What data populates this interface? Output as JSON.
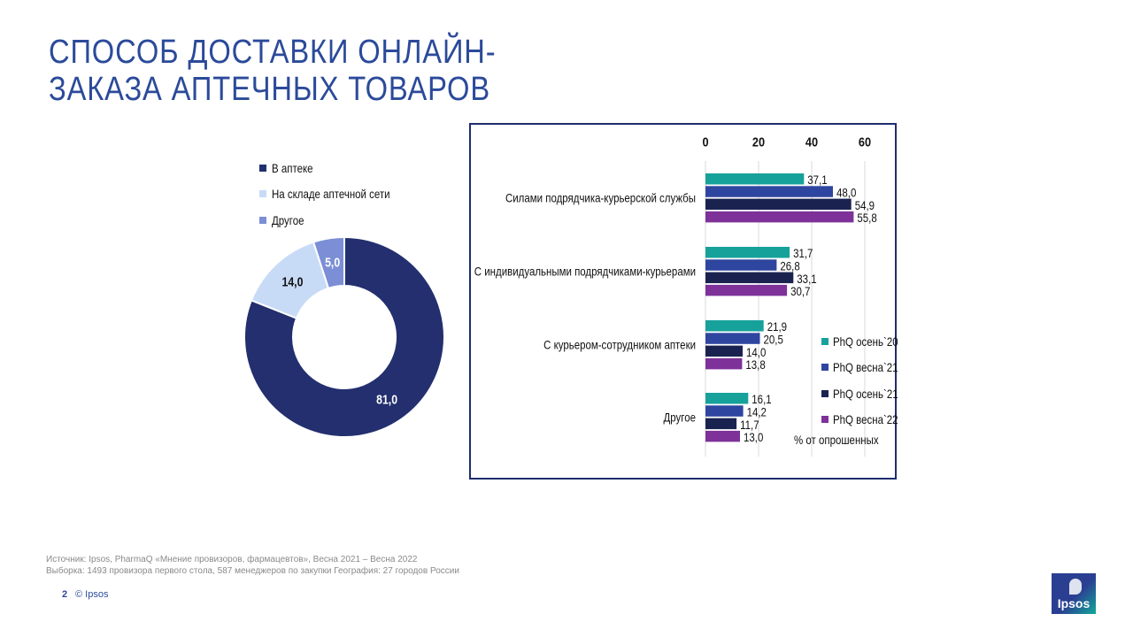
{
  "title": {
    "line1": "СПОСОБ ДОСТАВКИ ОНЛАЙН-",
    "line2": "ЗАКАЗА АПТЕЧНЫХ ТОВАРОВ"
  },
  "colors": {
    "title": "#2b4a9a",
    "frame": "#1f2d6b"
  },
  "chart_data": [
    {
      "type": "pie",
      "variant": "donut",
      "title": "",
      "categories": [
        "В аптеке",
        "На складе аптечной сети",
        "Другое"
      ],
      "values": [
        81.0,
        14.0,
        5.0
      ],
      "value_labels": [
        "81,0",
        "14,0",
        "5,0"
      ],
      "colors": [
        "#232f6e",
        "#c7dbf7",
        "#7b8ed6"
      ],
      "legend_position": "top-left"
    },
    {
      "type": "bar",
      "orientation": "horizontal",
      "title": "",
      "categories": [
        "Силами подрядчика-курьерской службы",
        "С индивидуальными  подрядчиками-курьерами",
        "С курьером-сотрудником аптеки",
        "Другое"
      ],
      "series": [
        {
          "name": "PhQ осень`20",
          "color": "#17a19b",
          "values": [
            37.1,
            31.7,
            21.9,
            16.1
          ],
          "labels": [
            "37,1",
            "31,7",
            "21,9",
            "16,1"
          ]
        },
        {
          "name": "PhQ весна`21",
          "color": "#2f46a0",
          "values": [
            48.0,
            26.8,
            20.5,
            14.2
          ],
          "labels": [
            "48,0",
            "26,8",
            "20,5",
            "14,2"
          ]
        },
        {
          "name": "PhQ осень`21",
          "color": "#1a2350",
          "values": [
            54.9,
            33.1,
            14.0,
            11.7
          ],
          "labels": [
            "54,9",
            "33,1",
            "14,0",
            "11,7"
          ]
        },
        {
          "name": "PhQ весна`22",
          "color": "#7d3199",
          "values": [
            55.8,
            30.7,
            13.8,
            13.0
          ],
          "labels": [
            "55,8",
            "30,7",
            "13,8",
            "13,0"
          ]
        }
      ],
      "x_ticks": [
        "0",
        "20",
        "40",
        "60"
      ],
      "xlim": [
        0,
        60
      ],
      "xaxis_position": "top",
      "grid": true,
      "legend_position": "bottom-right",
      "unit_note": "% от опрошенных"
    }
  ],
  "footer": {
    "source_line1": "Источник: Ipsos, PharmaQ «Мнение провизоров, фармацевтов», Весна 2021 – Весна 2022",
    "source_line2": "Выборка: 1493 провизора первого стола, 587 менеджеров по закупки География: 27 городов России",
    "page_number": "2",
    "copyright": "© Ipsos",
    "logo_text": "Ipsos"
  }
}
